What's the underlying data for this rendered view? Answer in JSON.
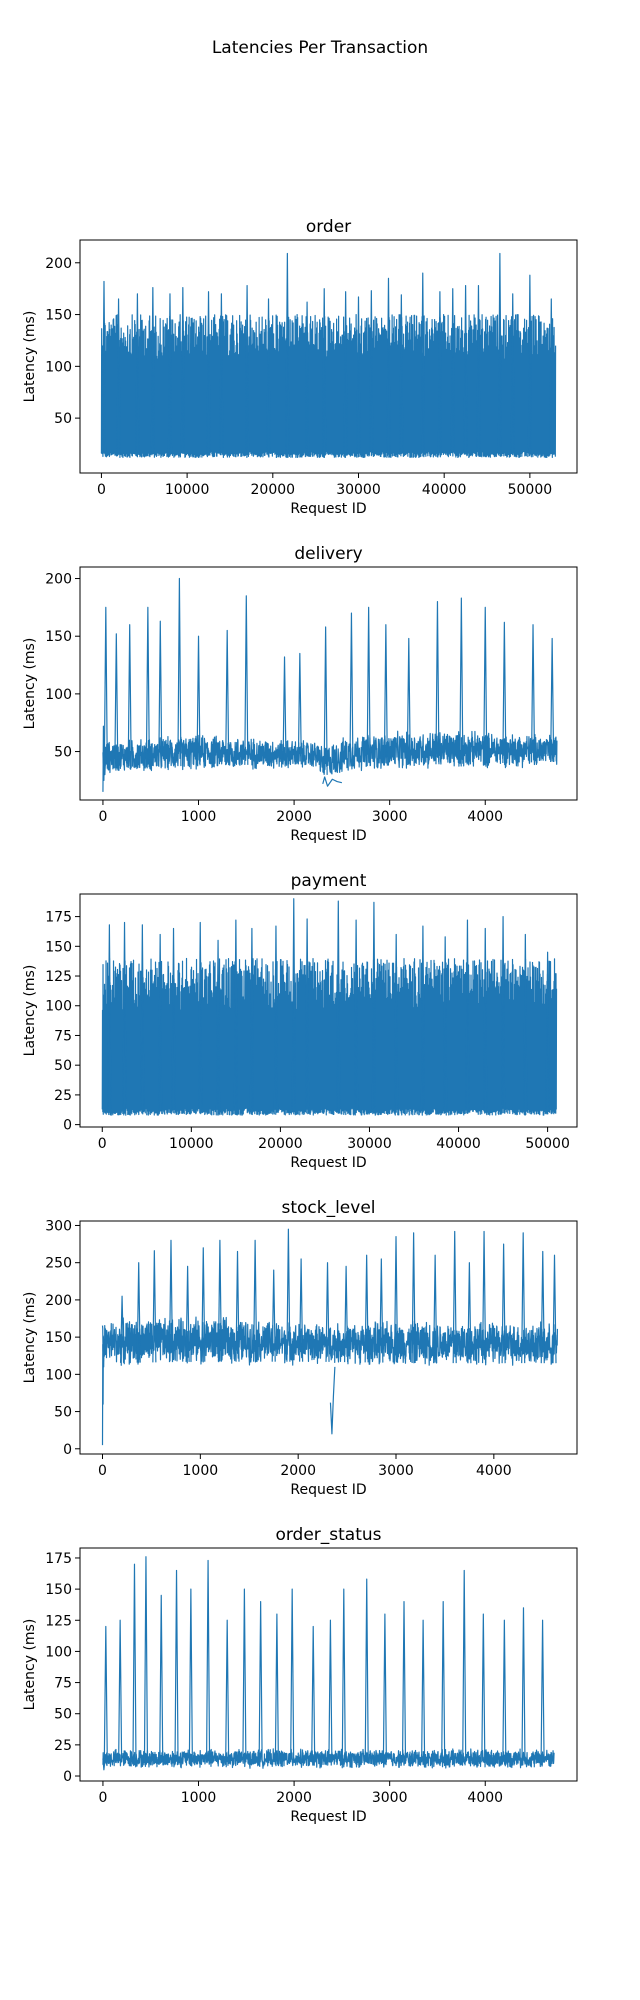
{
  "figure_title": "Latencies Per Transaction",
  "chart_data": [
    {
      "type": "line",
      "title": "order",
      "xlabel": "Request ID",
      "ylabel": "Latency (ms)",
      "xlim": [
        -2500,
        55500
      ],
      "ylim": [
        -3,
        222
      ],
      "xticks": [
        0,
        10000,
        20000,
        30000,
        40000,
        50000
      ],
      "yticks": [
        50,
        100,
        150,
        200
      ],
      "series": [
        {
          "color": "#1f77b4",
          "x_range": [
            0,
            53000
          ],
          "baseline": 12,
          "band": [
            [
              0,
              12,
              150
            ],
            [
              53000,
              12,
              150
            ]
          ],
          "peaks": [
            [
              300,
              182
            ],
            [
              2000,
              165
            ],
            [
              4200,
              170
            ],
            [
              6000,
              176
            ],
            [
              8000,
              170
            ],
            [
              9500,
              176
            ],
            [
              12500,
              172
            ],
            [
              14000,
              170
            ],
            [
              17000,
              178
            ],
            [
              19500,
              165
            ],
            [
              21700,
              209
            ],
            [
              24000,
              162
            ],
            [
              26000,
              175
            ],
            [
              28500,
              172
            ],
            [
              30000,
              167
            ],
            [
              31500,
              173
            ],
            [
              33500,
              185
            ],
            [
              35000,
              169
            ],
            [
              37500,
              190
            ],
            [
              39500,
              172
            ],
            [
              41000,
              175
            ],
            [
              42500,
              178
            ],
            [
              44000,
              178
            ],
            [
              46500,
              209
            ],
            [
              48000,
              170
            ],
            [
              50000,
              188
            ],
            [
              52500,
              165
            ]
          ]
        }
      ]
    },
    {
      "type": "line",
      "title": "delivery",
      "xlabel": "Request ID",
      "ylabel": "Latency (ms)",
      "xlim": [
        -240,
        4960
      ],
      "ylim": [
        8,
        210
      ],
      "xticks": [
        0,
        1000,
        2000,
        3000,
        4000
      ],
      "yticks": [
        50,
        100,
        150,
        200
      ],
      "series": [
        {
          "color": "#1f77b4",
          "x_range": [
            0,
            4750
          ],
          "start_points": [
            [
              0,
              15
            ],
            [
              5,
              72
            ],
            [
              10,
              25
            ],
            [
              15,
              60
            ],
            [
              20,
              30
            ],
            [
              30,
              50
            ]
          ],
          "dip_points": [
            [
              2300,
              22
            ],
            [
              2320,
              28
            ],
            [
              2350,
              20
            ],
            [
              2400,
              26
            ],
            [
              2450,
              24
            ],
            [
              2500,
              23
            ]
          ],
          "band": [
            [
              0,
              30,
              60
            ],
            [
              1000,
              33,
              66
            ],
            [
              2250,
              34,
              60
            ],
            [
              2300,
              24,
              56
            ],
            [
              2600,
              32,
              66
            ],
            [
              3500,
              34,
              70
            ],
            [
              4750,
              36,
              66
            ]
          ],
          "peaks": [
            [
              30,
              175
            ],
            [
              140,
              152
            ],
            [
              280,
              160
            ],
            [
              470,
              175
            ],
            [
              600,
              163
            ],
            [
              800,
              200
            ],
            [
              1000,
              150
            ],
            [
              1300,
              155
            ],
            [
              1500,
              185
            ],
            [
              1900,
              132
            ],
            [
              2060,
              135
            ],
            [
              2330,
              158
            ],
            [
              2600,
              170
            ],
            [
              2780,
              175
            ],
            [
              2960,
              160
            ],
            [
              3200,
              148
            ],
            [
              3500,
              180
            ],
            [
              3750,
              183
            ],
            [
              4000,
              175
            ],
            [
              4200,
              162
            ],
            [
              4500,
              160
            ],
            [
              4700,
              148
            ]
          ]
        }
      ]
    },
    {
      "type": "line",
      "title": "payment",
      "xlabel": "Request ID",
      "ylabel": "Latency (ms)",
      "xlim": [
        -2500,
        53300
      ],
      "ylim": [
        -2,
        194
      ],
      "xticks": [
        0,
        10000,
        20000,
        30000,
        40000,
        50000
      ],
      "yticks": [
        0,
        25,
        50,
        75,
        100,
        125,
        150,
        175
      ],
      "series": [
        {
          "color": "#1f77b4",
          "x_range": [
            0,
            51000
          ],
          "baseline": 8,
          "band": [
            [
              0,
              8,
              140
            ],
            [
              51000,
              8,
              140
            ]
          ],
          "peaks": [
            [
              800,
              168
            ],
            [
              2500,
              170
            ],
            [
              4500,
              168
            ],
            [
              6500,
              160
            ],
            [
              8000,
              165
            ],
            [
              11000,
              170
            ],
            [
              13000,
              155
            ],
            [
              15000,
              172
            ],
            [
              16800,
              165
            ],
            [
              19500,
              167
            ],
            [
              21500,
              190
            ],
            [
              23000,
              173
            ],
            [
              26500,
              188
            ],
            [
              28500,
              172
            ],
            [
              30500,
              187
            ],
            [
              33000,
              160
            ],
            [
              36000,
              167
            ],
            [
              38500,
              158
            ],
            [
              41000,
              172
            ],
            [
              43000,
              165
            ],
            [
              45000,
              175
            ],
            [
              47500,
              160
            ],
            [
              50000,
              145
            ]
          ]
        }
      ]
    },
    {
      "type": "line",
      "title": "stock_level",
      "xlabel": "Request ID",
      "ylabel": "Latency (ms)",
      "xlim": [
        -230,
        4850
      ],
      "ylim": [
        -7,
        306
      ],
      "xticks": [
        0,
        1000,
        2000,
        3000,
        4000
      ],
      "yticks": [
        0,
        50,
        100,
        150,
        200,
        250,
        300
      ],
      "series": [
        {
          "color": "#1f77b4",
          "x_range": [
            0,
            4650
          ],
          "start_points": [
            [
              0,
              5
            ],
            [
              3,
              140
            ],
            [
              6,
              60
            ],
            [
              9,
              150
            ],
            [
              12,
              110
            ],
            [
              15,
              148
            ]
          ],
          "dip_points": [
            [
              2330,
              62
            ],
            [
              2345,
              20
            ],
            [
              2360,
              70
            ],
            [
              2375,
              110
            ]
          ],
          "band": [
            [
              0,
              110,
              175
            ],
            [
              1000,
              112,
              180
            ],
            [
              2200,
              112,
              170
            ],
            [
              3300,
              110,
              175
            ],
            [
              4650,
              110,
              170
            ]
          ],
          "peaks": [
            [
              200,
              205
            ],
            [
              370,
              250
            ],
            [
              530,
              266
            ],
            [
              700,
              280
            ],
            [
              870,
              245
            ],
            [
              1030,
              270
            ],
            [
              1200,
              280
            ],
            [
              1380,
              265
            ],
            [
              1560,
              280
            ],
            [
              1750,
              240
            ],
            [
              1900,
              295
            ],
            [
              2030,
              255
            ],
            [
              2300,
              250
            ],
            [
              2490,
              245
            ],
            [
              2700,
              260
            ],
            [
              2850,
              255
            ],
            [
              3000,
              285
            ],
            [
              3180,
              290
            ],
            [
              3400,
              260
            ],
            [
              3600,
              292
            ],
            [
              3750,
              250
            ],
            [
              3900,
              292
            ],
            [
              4100,
              275
            ],
            [
              4300,
              290
            ],
            [
              4500,
              265
            ],
            [
              4620,
              260
            ]
          ]
        }
      ]
    },
    {
      "type": "line",
      "title": "order_status",
      "xlabel": "Request ID",
      "ylabel": "Latency (ms)",
      "xlim": [
        -240,
        4960
      ],
      "ylim": [
        -4,
        183
      ],
      "xticks": [
        0,
        1000,
        2000,
        3000,
        4000
      ],
      "yticks": [
        0,
        25,
        50,
        75,
        100,
        125,
        150,
        175
      ],
      "series": [
        {
          "color": "#1f77b4",
          "x_range": [
            0,
            4720
          ],
          "start_points": [
            [
              0,
              14
            ],
            [
              10,
              5
            ],
            [
              20,
              12
            ]
          ],
          "dip_points": [],
          "band": [
            [
              0,
              6,
              22
            ],
            [
              4720,
              6,
              22
            ]
          ],
          "peaks": [
            [
              30,
              120
            ],
            [
              180,
              125
            ],
            [
              330,
              170
            ],
            [
              450,
              176
            ],
            [
              610,
              145
            ],
            [
              770,
              165
            ],
            [
              920,
              150
            ],
            [
              1100,
              173
            ],
            [
              1300,
              125
            ],
            [
              1480,
              150
            ],
            [
              1650,
              140
            ],
            [
              1820,
              130
            ],
            [
              1980,
              150
            ],
            [
              2200,
              120
            ],
            [
              2380,
              125
            ],
            [
              2520,
              150
            ],
            [
              2760,
              158
            ],
            [
              2950,
              130
            ],
            [
              3150,
              140
            ],
            [
              3350,
              125
            ],
            [
              3560,
              140
            ],
            [
              3780,
              165
            ],
            [
              3980,
              130
            ],
            [
              4200,
              125
            ],
            [
              4400,
              135
            ],
            [
              4600,
              125
            ]
          ]
        }
      ]
    }
  ]
}
